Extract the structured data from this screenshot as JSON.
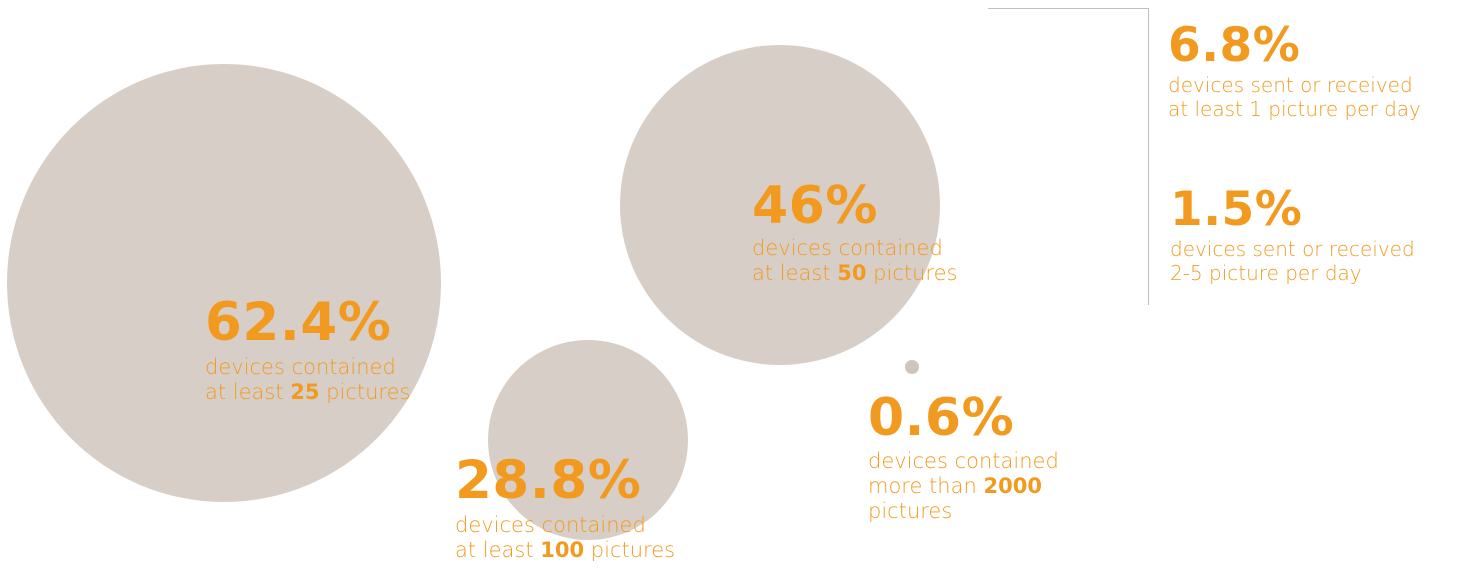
{
  "chart_data": {
    "type": "bubble",
    "colors": {
      "accent": "#f29a1f",
      "bubble": "#d7cfc7",
      "dot": "#cdc6bf",
      "rule": "#bfbfbf"
    },
    "bubbles": [
      {
        "value": "62.4%",
        "line1": "devices contained",
        "line2_pre": "at least ",
        "line2_bold": "25",
        "line2_post": " pictures"
      },
      {
        "value": "46%",
        "line1": "devices contained",
        "line2_pre": "at least ",
        "line2_bold": "50",
        "line2_post": " pictures"
      },
      {
        "value": "28.8%",
        "line1": "devices contained",
        "line2_pre": "at least ",
        "line2_bold": "100",
        "line2_post": " pictures"
      },
      {
        "value": "0.6%",
        "line1": "devices contained",
        "line2_pre": "more than ",
        "line2_bold": "2000",
        "line3": "pictures"
      }
    ],
    "side_stats": [
      {
        "value": "6.8%",
        "line1": "devices sent or received",
        "line2": "at least 1 picture per day"
      },
      {
        "value": "1.5%",
        "line1": "devices sent or received",
        "line2": "2-5 picture per day"
      }
    ]
  }
}
